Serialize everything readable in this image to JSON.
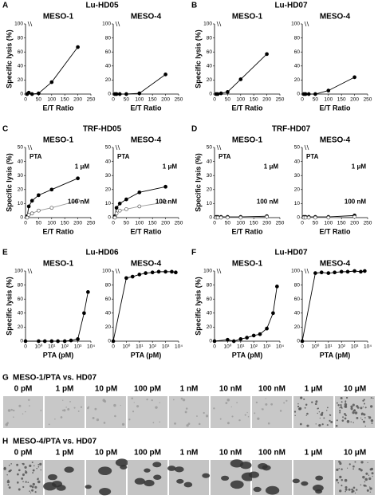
{
  "panels": [
    {
      "letter": "A",
      "title": "Lu-HD05",
      "chart_data": [
        {
          "type": "line",
          "title": "MESO-1",
          "xlabel": "E/T Ratio",
          "ylabel": "Specific lysis (%)",
          "xlim": [
            0,
            250
          ],
          "xticks": [
            0,
            50,
            100,
            150,
            200,
            250
          ],
          "ylim": [
            0,
            100
          ],
          "yticks": [
            0,
            20,
            40,
            60,
            80,
            100
          ],
          "series": [
            {
              "color": "#000000",
              "marker_fill": "#000000",
              "x": [
                6.25,
                12.5,
                25,
                50,
                100,
                200
              ],
              "values": [
                0,
                2,
                0,
                1,
                17,
                67
              ]
            }
          ]
        },
        {
          "type": "line",
          "title": "MESO-4",
          "xlabel": "E/T Ratio",
          "xlim": [
            0,
            250
          ],
          "xticks": [
            0,
            50,
            100,
            150,
            200,
            250
          ],
          "ylim": [
            0,
            100
          ],
          "yticks": [
            0,
            20,
            40,
            60,
            80,
            100
          ],
          "series": [
            {
              "color": "#000000",
              "marker_fill": "#000000",
              "x": [
                6.25,
                12.5,
                25,
                50,
                100,
                200
              ],
              "values": [
                0,
                0,
                0,
                0,
                1,
                28
              ]
            }
          ]
        }
      ]
    },
    {
      "letter": "B",
      "title": "Lu-HD07",
      "chart_data": [
        {
          "type": "line",
          "title": "MESO-1",
          "xlabel": "E/T Ratio",
          "ylabel": "Specific lysis (%)",
          "xlim": [
            0,
            250
          ],
          "xticks": [
            0,
            50,
            100,
            150,
            200,
            250
          ],
          "ylim": [
            0,
            100
          ],
          "yticks": [
            0,
            20,
            40,
            60,
            80,
            100
          ],
          "series": [
            {
              "color": "#000000",
              "marker_fill": "#000000",
              "x": [
                6.25,
                12.5,
                25,
                50,
                100,
                200
              ],
              "values": [
                0,
                0,
                1,
                3,
                21,
                57
              ]
            }
          ]
        },
        {
          "type": "line",
          "title": "MESO-4",
          "xlabel": "E/T Ratio",
          "xlim": [
            0,
            250
          ],
          "xticks": [
            0,
            50,
            100,
            150,
            200,
            250
          ],
          "ylim": [
            0,
            100
          ],
          "yticks": [
            0,
            20,
            40,
            60,
            80,
            100
          ],
          "series": [
            {
              "color": "#000000",
              "marker_fill": "#000000",
              "x": [
                6.25,
                12.5,
                25,
                50,
                100,
                200
              ],
              "values": [
                0,
                0,
                0,
                0,
                5,
                24
              ]
            }
          ]
        }
      ]
    },
    {
      "letter": "C",
      "title": "TRF-HD05",
      "chart_data": [
        {
          "type": "line",
          "title": "MESO-1",
          "annotation": "PTA",
          "xlabel": "E/T Ratio",
          "ylabel": "Specific lysis (%)",
          "xlim": [
            0,
            250
          ],
          "xticks": [
            0,
            50,
            100,
            150,
            200,
            250
          ],
          "ylim": [
            0,
            50
          ],
          "yticks": [
            0,
            10,
            20,
            30,
            40,
            50
          ],
          "series": [
            {
              "name": "1 μM",
              "color": "#000000",
              "marker_fill": "#000000",
              "x": [
                6.25,
                12.5,
                25,
                50,
                100,
                200
              ],
              "values": [
                1,
                8,
                12,
                16,
                20,
                28
              ]
            },
            {
              "name": "100 nM",
              "color": "#999999",
              "marker_fill": "#ffffff",
              "x": [
                6.25,
                12.5,
                25,
                50,
                100,
                200
              ],
              "values": [
                0,
                2,
                3,
                5,
                7,
                12
              ]
            }
          ]
        },
        {
          "type": "line",
          "title": "MESO-4",
          "annotation": "PTA",
          "xlabel": "E/T Ratio",
          "xlim": [
            0,
            250
          ],
          "xticks": [
            0,
            50,
            100,
            150,
            200,
            250
          ],
          "ylim": [
            0,
            50
          ],
          "yticks": [
            0,
            10,
            20,
            30,
            40,
            50
          ],
          "series": [
            {
              "name": "1 μM",
              "color": "#000000",
              "marker_fill": "#000000",
              "x": [
                6.25,
                12.5,
                25,
                50,
                100,
                200
              ],
              "values": [
                1,
                7,
                10,
                13,
                18,
                22
              ]
            },
            {
              "name": "100 nM",
              "color": "#999999",
              "marker_fill": "#ffffff",
              "x": [
                6.25,
                12.5,
                25,
                50,
                100,
                200
              ],
              "values": [
                0,
                3,
                5,
                6,
                8,
                11
              ]
            }
          ]
        }
      ]
    },
    {
      "letter": "D",
      "title": "TRF-HD07",
      "chart_data": [
        {
          "type": "line",
          "title": "MESO-1",
          "annotation": "PTA",
          "xlabel": "E/T Ratio",
          "ylabel": "Specific lysis (%)",
          "xlim": [
            0,
            250
          ],
          "xticks": [
            0,
            50,
            100,
            150,
            200,
            250
          ],
          "ylim": [
            0,
            50
          ],
          "yticks": [
            0,
            10,
            20,
            30,
            40,
            50
          ],
          "series": [
            {
              "name": "1 μM",
              "color": "#000000",
              "marker_fill": "#000000",
              "x": [
                6.25,
                12.5,
                25,
                50,
                100,
                200
              ],
              "values": [
                0.5,
                0.5,
                0.5,
                0.5,
                0.5,
                1
              ]
            },
            {
              "name": "100 nM",
              "color": "#999999",
              "marker_fill": "#ffffff",
              "x": [
                6.25,
                12.5,
                25,
                50,
                100,
                200
              ],
              "values": [
                0,
                0,
                0,
                0,
                0,
                0.5
              ]
            }
          ]
        },
        {
          "type": "line",
          "title": "MESO-4",
          "annotation": "PTA",
          "xlabel": "E/T Ratio",
          "xlim": [
            0,
            250
          ],
          "xticks": [
            0,
            50,
            100,
            150,
            200,
            250
          ],
          "ylim": [
            0,
            50
          ],
          "yticks": [
            0,
            10,
            20,
            30,
            40,
            50
          ],
          "series": [
            {
              "name": "1 μM",
              "color": "#000000",
              "marker_fill": "#000000",
              "x": [
                6.25,
                12.5,
                25,
                50,
                100,
                200
              ],
              "values": [
                0.5,
                0.5,
                0.5,
                0.5,
                0.5,
                1.5
              ]
            },
            {
              "name": "100 nM",
              "color": "#999999",
              "marker_fill": "#ffffff",
              "x": [
                6.25,
                12.5,
                25,
                50,
                100,
                200
              ],
              "values": [
                0,
                0,
                0,
                0,
                0,
                0.5
              ]
            }
          ]
        }
      ]
    },
    {
      "letter": "E",
      "title": "Lu-HD06",
      "chart_data": [
        {
          "type": "line",
          "title": "MESO-1",
          "xlabel": "PTA (pM)",
          "ylabel": "Specific lysis (%)",
          "xscale": "log",
          "xlim": [
            0.1,
            10000
          ],
          "xticks": [
            0,
            {
              "value": 1,
              "label": "10⁰"
            },
            {
              "value": 10,
              "label": "10¹"
            },
            {
              "value": 100,
              "label": "10²"
            },
            {
              "value": 1000,
              "label": "10³"
            },
            {
              "value": 10000,
              "label": "10⁴"
            }
          ],
          "ylim": [
            0,
            100
          ],
          "yticks": [
            0,
            20,
            40,
            60,
            80,
            100
          ],
          "series": [
            {
              "color": "#000000",
              "marker_fill": "#000000",
              "x": [
                0,
                1,
                3,
                10,
                30,
                100,
                300,
                1000,
                3000,
                6000
              ],
              "values": [
                0,
                0,
                0,
                0,
                0,
                0,
                1,
                3,
                40,
                70
              ]
            }
          ]
        },
        {
          "type": "line",
          "title": "MESO-4",
          "xlabel": "PTA (pM)",
          "xscale": "log",
          "xlim": [
            0.1,
            10000
          ],
          "xticks": [
            0,
            {
              "value": 1,
              "label": "10⁰"
            },
            {
              "value": 10,
              "label": "10¹"
            },
            {
              "value": 100,
              "label": "10²"
            },
            {
              "value": 1000,
              "label": "10³"
            },
            {
              "value": 10000,
              "label": "10⁴"
            }
          ],
          "ylim": [
            0,
            100
          ],
          "yticks": [
            0,
            20,
            40,
            60,
            80,
            100
          ],
          "series": [
            {
              "color": "#000000",
              "marker_fill": "#000000",
              "x": [
                0,
                1,
                3,
                10,
                30,
                100,
                300,
                1000,
                3000,
                6000
              ],
              "values": [
                0,
                90,
                92,
                95,
                97,
                98,
                99,
                99,
                99,
                98
              ]
            }
          ]
        }
      ]
    },
    {
      "letter": "F",
      "title": "Lu-HD07",
      "chart_data": [
        {
          "type": "line",
          "title": "MESO-1",
          "xlabel": "PTA (pM)",
          "ylabel": "Specific lysis (%)",
          "xscale": "log",
          "xlim": [
            0.1,
            10000
          ],
          "xticks": [
            0,
            {
              "value": 1,
              "label": "10⁰"
            },
            {
              "value": 10,
              "label": "10¹"
            },
            {
              "value": 100,
              "label": "10²"
            },
            {
              "value": 1000,
              "label": "10³"
            },
            {
              "value": 10000,
              "label": "10⁴"
            }
          ],
          "ylim": [
            0,
            100
          ],
          "yticks": [
            0,
            20,
            40,
            60,
            80,
            100
          ],
          "series": [
            {
              "color": "#000000",
              "marker_fill": "#000000",
              "x": [
                0,
                1,
                3,
                10,
                30,
                100,
                300,
                1000,
                3000,
                6000
              ],
              "values": [
                0,
                2,
                0,
                3,
                5,
                8,
                10,
                18,
                40,
                78
              ]
            }
          ]
        },
        {
          "type": "line",
          "title": "MESO-4",
          "xlabel": "PTA (pM)",
          "xscale": "log",
          "xlim": [
            0.1,
            10000
          ],
          "xticks": [
            0,
            {
              "value": 1,
              "label": "10⁰"
            },
            {
              "value": 10,
              "label": "10¹"
            },
            {
              "value": 100,
              "label": "10²"
            },
            {
              "value": 1000,
              "label": "10³"
            },
            {
              "value": 10000,
              "label": "10⁴"
            }
          ],
          "ylim": [
            0,
            100
          ],
          "yticks": [
            0,
            20,
            40,
            60,
            80,
            100
          ],
          "series": [
            {
              "color": "#000000",
              "marker_fill": "#000000",
              "x": [
                0,
                1,
                3,
                10,
                30,
                100,
                300,
                1000,
                3000,
                6000
              ],
              "values": [
                0,
                97,
                98,
                97,
                98,
                99,
                99,
                100,
                99,
                100
              ]
            }
          ]
        }
      ]
    }
  ],
  "images": [
    {
      "letter": "G",
      "title": "MESO-1/PTA vs. HD07",
      "labels": [
        "0 pM",
        "1 pM",
        "10 pM",
        "100 pM",
        "1 nM",
        "10 nM",
        "100 nM",
        "1 μM",
        "10 μM"
      ]
    },
    {
      "letter": "H",
      "title": "MESO-4/PTA vs. HD07",
      "labels": [
        "0 pM",
        "1 pM",
        "10 pM",
        "100 pM",
        "1 nM",
        "10 nM",
        "100 nM",
        "1 μM",
        "10 μM"
      ]
    }
  ]
}
